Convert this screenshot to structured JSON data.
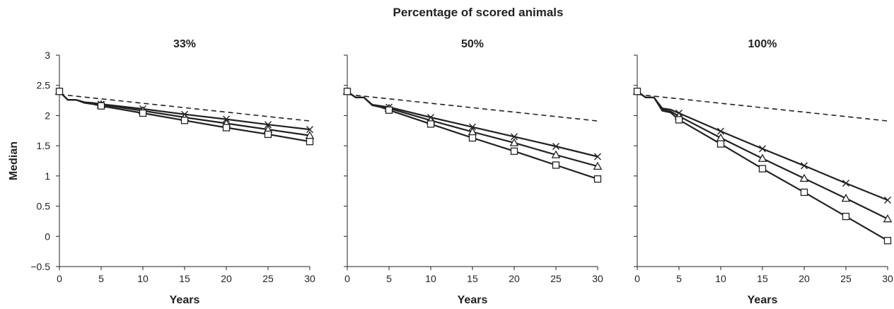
{
  "super_title": "Percentage of scored animals",
  "chart_data": [
    {
      "type": "line",
      "title": "33%",
      "xlabel": "Years",
      "ylabel": "Median",
      "xlim": [
        0,
        30
      ],
      "ylim": [
        -0.5,
        3
      ],
      "xticks": [
        "0",
        "5",
        "10",
        "15",
        "20",
        "25",
        "30"
      ],
      "yticks": [
        "−0.5",
        "0",
        "0.5",
        "1",
        "1.5",
        "2",
        "2.5",
        "3"
      ],
      "legend": "none",
      "grid": false,
      "series": [
        {
          "style": "dashed",
          "marker": "none",
          "x": [
            0,
            30
          ],
          "y": [
            2.35,
            1.91
          ]
        },
        {
          "style": "solid",
          "marker": "x",
          "x": [
            0,
            1,
            2,
            3,
            4,
            5,
            10,
            15,
            20,
            25,
            30
          ],
          "y": [
            2.4,
            2.26,
            2.26,
            2.22,
            2.21,
            2.19,
            2.11,
            2.02,
            1.94,
            1.85,
            1.77
          ]
        },
        {
          "style": "solid",
          "marker": "triangle",
          "x": [
            0,
            1,
            2,
            3,
            4,
            5,
            10,
            15,
            20,
            25,
            30
          ],
          "y": [
            2.4,
            2.26,
            2.26,
            2.22,
            2.2,
            2.18,
            2.08,
            1.97,
            1.87,
            1.77,
            1.67
          ]
        },
        {
          "style": "solid",
          "marker": "square",
          "x": [
            0,
            1,
            2,
            3,
            4,
            5,
            10,
            15,
            20,
            25,
            30
          ],
          "y": [
            2.4,
            2.26,
            2.26,
            2.21,
            2.19,
            2.16,
            2.04,
            1.92,
            1.8,
            1.69,
            1.57
          ]
        }
      ]
    },
    {
      "type": "line",
      "title": "50%",
      "xlabel": "Years",
      "ylabel": "",
      "xlim": [
        0,
        30
      ],
      "ylim": [
        -0.5,
        3
      ],
      "xticks": [
        "0",
        "5",
        "10",
        "15",
        "20",
        "25",
        "30"
      ],
      "legend": "none",
      "grid": false,
      "series": [
        {
          "style": "dashed",
          "marker": "none",
          "x": [
            0,
            30
          ],
          "y": [
            2.35,
            1.91
          ]
        },
        {
          "style": "solid",
          "marker": "x",
          "x": [
            0,
            1,
            2,
            3,
            4,
            5,
            10,
            15,
            20,
            25,
            30
          ],
          "y": [
            2.4,
            2.3,
            2.3,
            2.18,
            2.16,
            2.14,
            1.97,
            1.81,
            1.65,
            1.49,
            1.32
          ]
        },
        {
          "style": "solid",
          "marker": "triangle",
          "x": [
            0,
            1,
            2,
            3,
            4,
            5,
            10,
            15,
            20,
            25,
            30
          ],
          "y": [
            2.4,
            2.3,
            2.3,
            2.17,
            2.15,
            2.12,
            1.92,
            1.73,
            1.55,
            1.35,
            1.16
          ]
        },
        {
          "style": "solid",
          "marker": "square",
          "x": [
            0,
            1,
            2,
            3,
            4,
            5,
            10,
            15,
            20,
            25,
            30
          ],
          "y": [
            2.4,
            2.3,
            2.3,
            2.17,
            2.14,
            2.09,
            1.86,
            1.63,
            1.41,
            1.18,
            0.95
          ]
        }
      ]
    },
    {
      "type": "line",
      "title": "100%",
      "xlabel": "Years",
      "ylabel": "",
      "xlim": [
        0,
        30
      ],
      "ylim": [
        -0.5,
        3
      ],
      "xticks": [
        "0",
        "5",
        "10",
        "15",
        "20",
        "25",
        "30"
      ],
      "legend": "none",
      "grid": false,
      "series": [
        {
          "style": "dashed",
          "marker": "none",
          "x": [
            0,
            30
          ],
          "y": [
            2.35,
            1.91
          ]
        },
        {
          "style": "solid",
          "marker": "x",
          "x": [
            0,
            1,
            2,
            3,
            4,
            5,
            10,
            15,
            20,
            25,
            30
          ],
          "y": [
            2.4,
            2.3,
            2.3,
            2.12,
            2.1,
            2.04,
            1.74,
            1.45,
            1.17,
            0.88,
            0.6
          ]
        },
        {
          "style": "solid",
          "marker": "triangle",
          "x": [
            0,
            1,
            2,
            3,
            4,
            5,
            10,
            15,
            20,
            25,
            30
          ],
          "y": [
            2.4,
            2.3,
            2.3,
            2.1,
            2.07,
            1.99,
            1.63,
            1.29,
            0.96,
            0.63,
            0.29
          ]
        },
        {
          "style": "solid",
          "marker": "square",
          "x": [
            0,
            1,
            2,
            3,
            4,
            5,
            10,
            15,
            20,
            25,
            30
          ],
          "y": [
            2.4,
            2.3,
            2.3,
            2.08,
            2.05,
            1.93,
            1.53,
            1.12,
            0.73,
            0.33,
            -0.07
          ]
        }
      ]
    }
  ]
}
